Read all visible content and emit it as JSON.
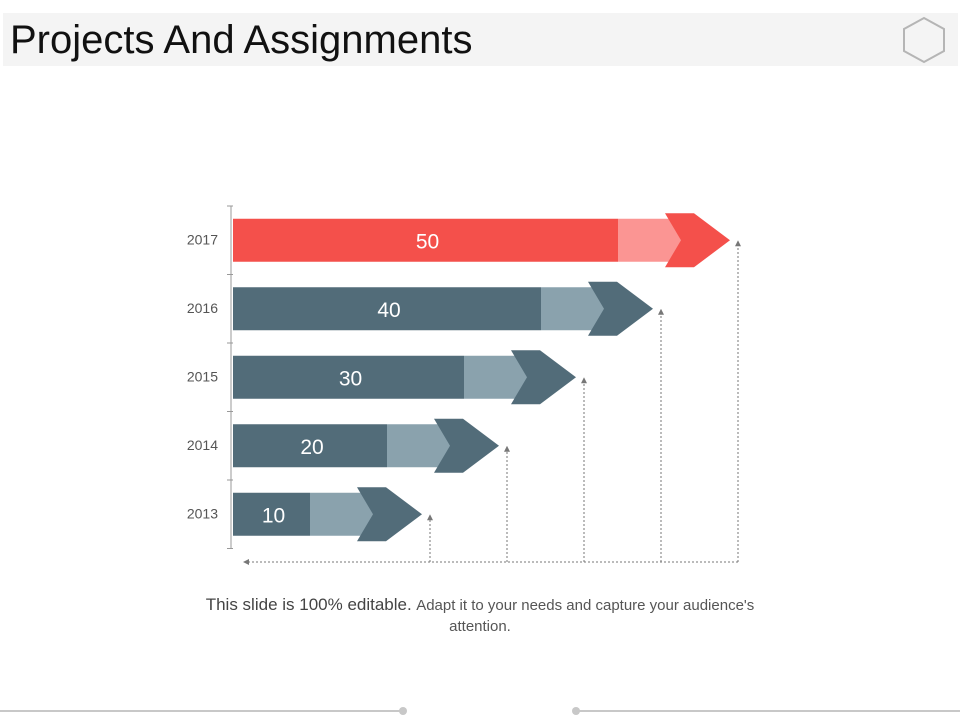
{
  "slide": {
    "title": "Projects And Assignments",
    "logo_icon": "hexagon-icon"
  },
  "caption": {
    "lead": "This slide is 100% editable.",
    "rest": "Adapt it to your needs and capture your audience's attention."
  },
  "chart_data": {
    "type": "bar",
    "orientation": "horizontal-arrows",
    "categories": [
      "2017",
      "2016",
      "2015",
      "2014",
      "2013"
    ],
    "values": [
      50,
      40,
      30,
      20,
      10
    ],
    "data_labels": [
      "50",
      "40",
      "30",
      "20",
      "10"
    ],
    "highlight_category": "2017",
    "colors": {
      "highlight_dark": "#f4504b",
      "highlight_light": "#fb9593",
      "normal_dark": "#526c79",
      "normal_light": "#8aa2ad",
      "axis": "#999999",
      "label": "#555555"
    },
    "title": "",
    "xlabel": "",
    "ylabel": ""
  }
}
